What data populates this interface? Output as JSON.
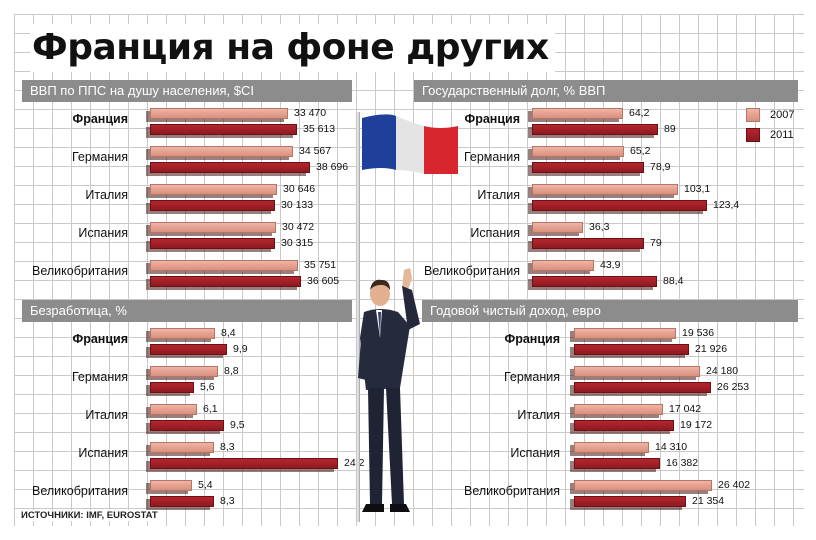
{
  "title": "Франция на фоне других",
  "source": "ИСТОЧНИКИ: IMF, EUROSTAT",
  "colors": {
    "s2007": "#e4a08f",
    "s2011": "#a41f26",
    "header": "#8c8c8c"
  },
  "chart_data": [
    {
      "id": "gdp",
      "type": "bar",
      "title": "ВВП по ППС на душу населения, $CI",
      "categories": [
        "Франция",
        "Германия",
        "Италия",
        "Испания",
        "Великобритания"
      ],
      "series": [
        {
          "name": "2007",
          "values": [
            33470,
            34567,
            30646,
            30472,
            35751
          ],
          "labels": [
            "33 470",
            "34 567",
            "30 646",
            "30 472",
            "35 751"
          ]
        },
        {
          "name": "2011",
          "values": [
            35613,
            38696,
            30133,
            30315,
            36605
          ],
          "labels": [
            "35 613",
            "38 696",
            "30 133",
            "30 315",
            "36 605"
          ]
        }
      ]
    },
    {
      "id": "debt",
      "type": "bar",
      "title": "Государственный долг, % ВВП",
      "categories": [
        "Франция",
        "Германия",
        "Италия",
        "Испания",
        "Великобритания"
      ],
      "series": [
        {
          "name": "2007",
          "values": [
            64.2,
            65.2,
            103.1,
            36.3,
            43.9
          ],
          "labels": [
            "64,2",
            "65,2",
            "103,1",
            "36,3",
            "43,9"
          ]
        },
        {
          "name": "2011",
          "values": [
            89,
            78.9,
            123.4,
            79,
            88.4
          ],
          "labels": [
            "89",
            "78,9",
            "123,4",
            "79",
            "88,4"
          ]
        }
      ],
      "legend": [
        "2007",
        "2011"
      ],
      "legend_position": "top-right"
    },
    {
      "id": "unemp",
      "type": "bar",
      "title": "Безработица, %",
      "categories": [
        "Франция",
        "Германия",
        "Италия",
        "Испания",
        "Великобритания"
      ],
      "series": [
        {
          "name": "2007",
          "values": [
            8.4,
            8.8,
            6.1,
            8.3,
            5.4
          ],
          "labels": [
            "8,4",
            "8,8",
            "6,1",
            "8,3",
            "5,4"
          ]
        },
        {
          "name": "2011",
          "values": [
            9.9,
            5.6,
            9.5,
            24.2,
            8.3
          ],
          "labels": [
            "9,9",
            "5,6",
            "9,5",
            "24,2",
            "8,3"
          ]
        }
      ]
    },
    {
      "id": "income",
      "type": "bar",
      "title": "Годовой чистый доход, евро",
      "categories": [
        "Франция",
        "Германия",
        "Италия",
        "Испания",
        "Великобритания"
      ],
      "series": [
        {
          "name": "2007",
          "values": [
            19536,
            24180,
            17042,
            14310,
            26402
          ],
          "labels": [
            "19 536",
            "24 180",
            "17 042",
            "14 310",
            "26 402"
          ]
        },
        {
          "name": "2011",
          "values": [
            21926,
            26253,
            19172,
            16382,
            21354
          ],
          "labels": [
            "21 926",
            "26 253",
            "19 172",
            "16 382",
            "21 354"
          ]
        }
      ]
    }
  ]
}
